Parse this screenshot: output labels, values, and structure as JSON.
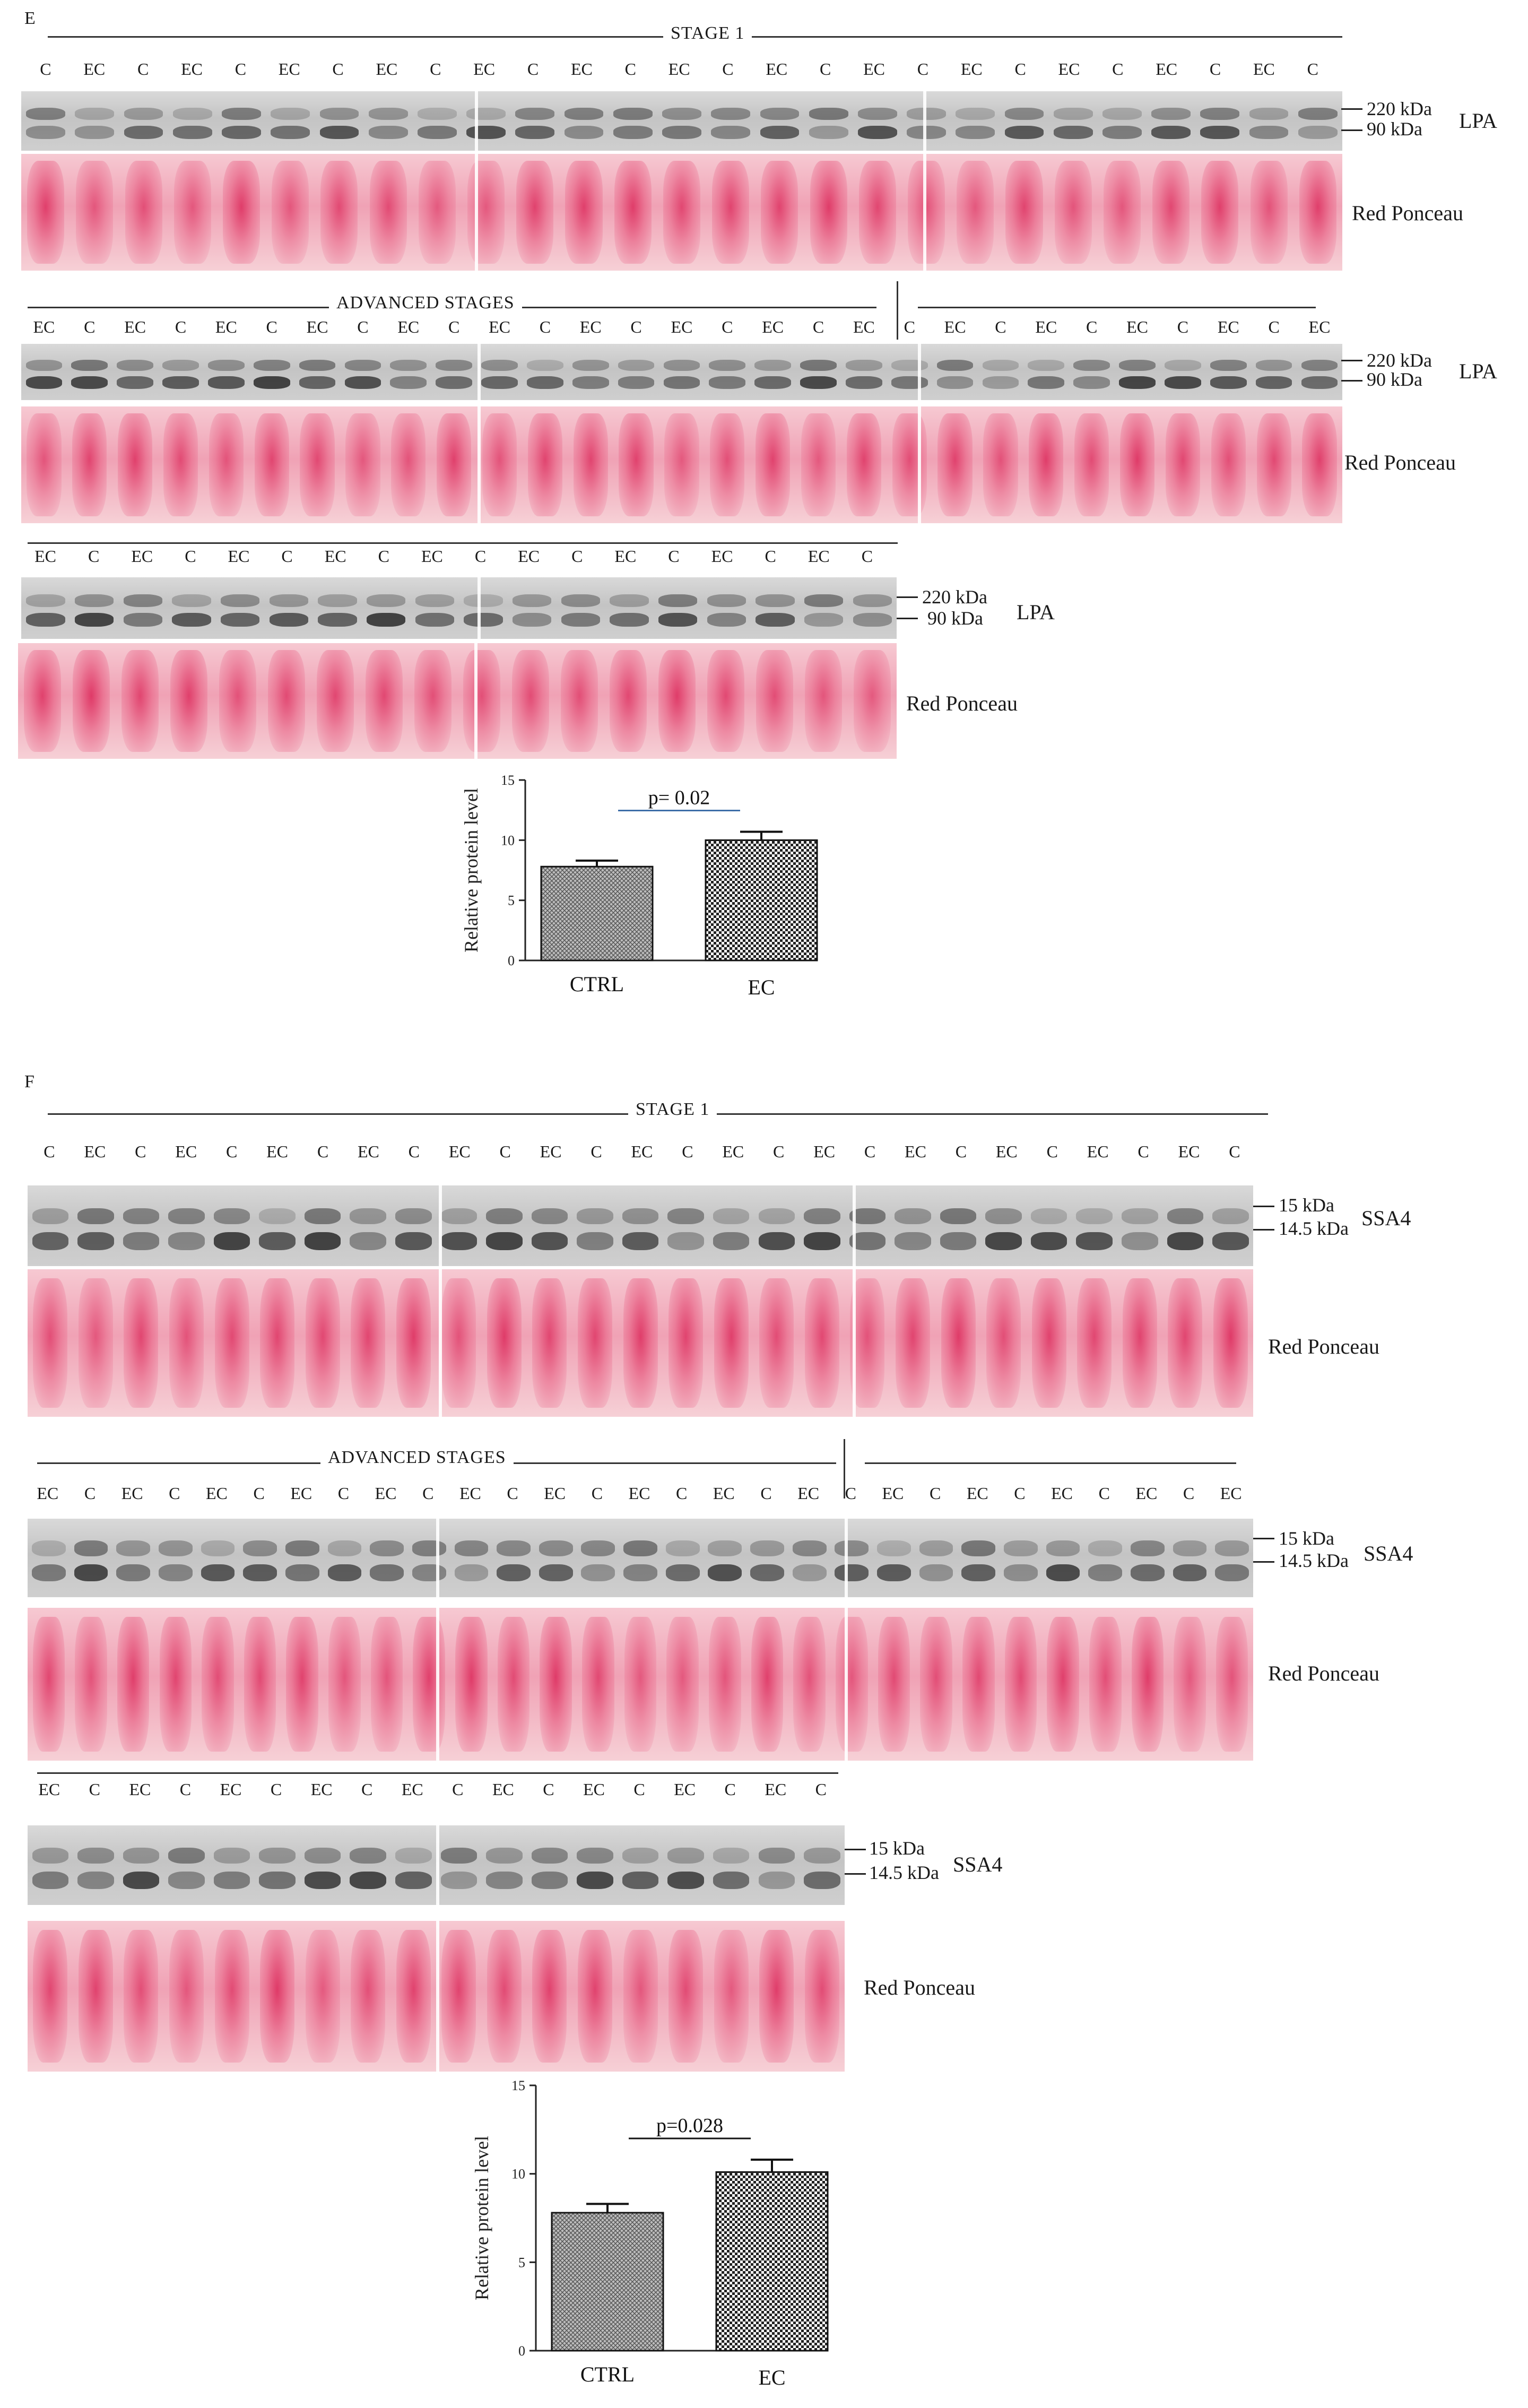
{
  "panel_e": {
    "letter": "E",
    "stage1_title": "STAGE 1",
    "advanced_title": "ADVANCED STAGES",
    "row1_lanes": [
      "C",
      "EC",
      "C",
      "EC",
      "C",
      "EC",
      "C",
      "EC",
      "C",
      "EC",
      "C",
      "EC",
      "C",
      "EC",
      "C",
      "EC",
      "C",
      "EC",
      "C",
      "EC",
      "C",
      "EC",
      "C",
      "EC",
      "C",
      "EC",
      "C"
    ],
    "row2_lanes": [
      "EC",
      "C",
      "EC",
      "C",
      "EC",
      "C",
      "EC",
      "C",
      "EC",
      "C",
      "EC",
      "C",
      "EC",
      "C",
      "EC",
      "C",
      "EC",
      "C",
      "EC",
      "C",
      "EC",
      "C",
      "EC",
      "C",
      "EC",
      "C",
      "EC",
      "C",
      "EC"
    ],
    "row3_lanes": [
      "EC",
      "C",
      "EC",
      "C",
      "EC",
      "C",
      "EC",
      "C",
      "EC",
      "C",
      "EC",
      "C",
      "EC",
      "C",
      "EC",
      "C",
      "EC",
      "C"
    ],
    "mw_high": "220 kDa",
    "mw_low": "90 kDa",
    "protein": "LPA",
    "stain": "Red Ponceau"
  },
  "panel_f": {
    "letter": "F",
    "stage1_title": "STAGE 1",
    "advanced_title": "ADVANCED STAGES",
    "row1_lanes": [
      "C",
      "EC",
      "C",
      "EC",
      "C",
      "EC",
      "C",
      "EC",
      "C",
      "EC",
      "C",
      "EC",
      "C",
      "EC",
      "C",
      "EC",
      "C",
      "EC",
      "C",
      "EC",
      "C",
      "EC",
      "C",
      "EC",
      "C",
      "EC",
      "C"
    ],
    "row2_lanes": [
      "EC",
      "C",
      "EC",
      "C",
      "EC",
      "C",
      "EC",
      "C",
      "EC",
      "C",
      "EC",
      "C",
      "EC",
      "C",
      "EC",
      "C",
      "EC",
      "C",
      "EC",
      "C",
      "EC",
      "C",
      "EC",
      "C",
      "EC",
      "C",
      "EC",
      "C",
      "EC"
    ],
    "row3_lanes": [
      "EC",
      "C",
      "EC",
      "C",
      "EC",
      "C",
      "EC",
      "C",
      "EC",
      "C",
      "EC",
      "C",
      "EC",
      "C",
      "EC",
      "C",
      "EC",
      "C"
    ],
    "mw_high": "15  kDa",
    "mw_low": "14.5 kDa",
    "protein": "SSA4",
    "stain": "Red Ponceau"
  },
  "chart_data": [
    {
      "type": "bar",
      "panel": "E",
      "categories": [
        "CTRL",
        "EC"
      ],
      "values": [
        7.8,
        10.0
      ],
      "errors": [
        0.5,
        0.7
      ],
      "ylabel": "Relative protein level",
      "ylim": [
        0,
        15
      ],
      "yticks": [
        0,
        5,
        10,
        15
      ],
      "annotation": "p= 0.02",
      "colors": [
        "#7a7a7a",
        "#2a2a2a"
      ]
    },
    {
      "type": "bar",
      "panel": "F",
      "categories": [
        "CTRL",
        "EC"
      ],
      "values": [
        7.8,
        10.1
      ],
      "errors": [
        0.5,
        0.7
      ],
      "ylabel": "Relative protein level",
      "ylim": [
        0,
        15
      ],
      "yticks": [
        0,
        5,
        10,
        15
      ],
      "annotation": "p=0.028",
      "colors": [
        "#7a7a7a",
        "#2a2a2a"
      ]
    }
  ]
}
